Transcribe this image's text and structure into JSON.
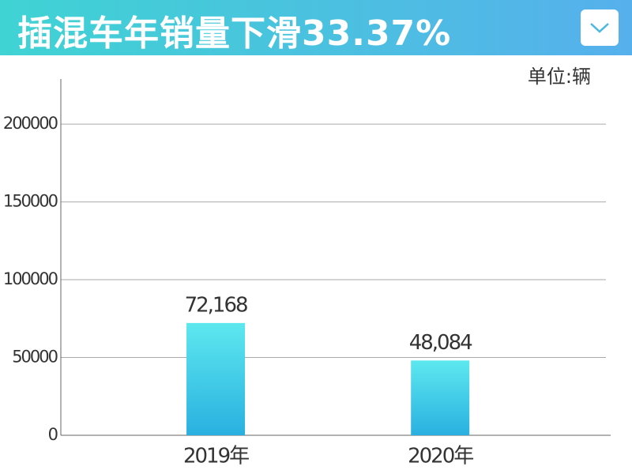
{
  "chart_data": {
    "type": "bar",
    "title": "插混车年销量下滑33.37%",
    "unit": "单位:辆",
    "categories": [
      "2019年",
      "2020年"
    ],
    "values": [
      72168,
      48084
    ],
    "value_labels": [
      "72,168",
      "48,084"
    ],
    "color": "#2ab0e0",
    "ylim": [
      0,
      229000
    ],
    "yticks": [
      0,
      50000,
      100000,
      150000,
      200000
    ],
    "grid": true
  }
}
